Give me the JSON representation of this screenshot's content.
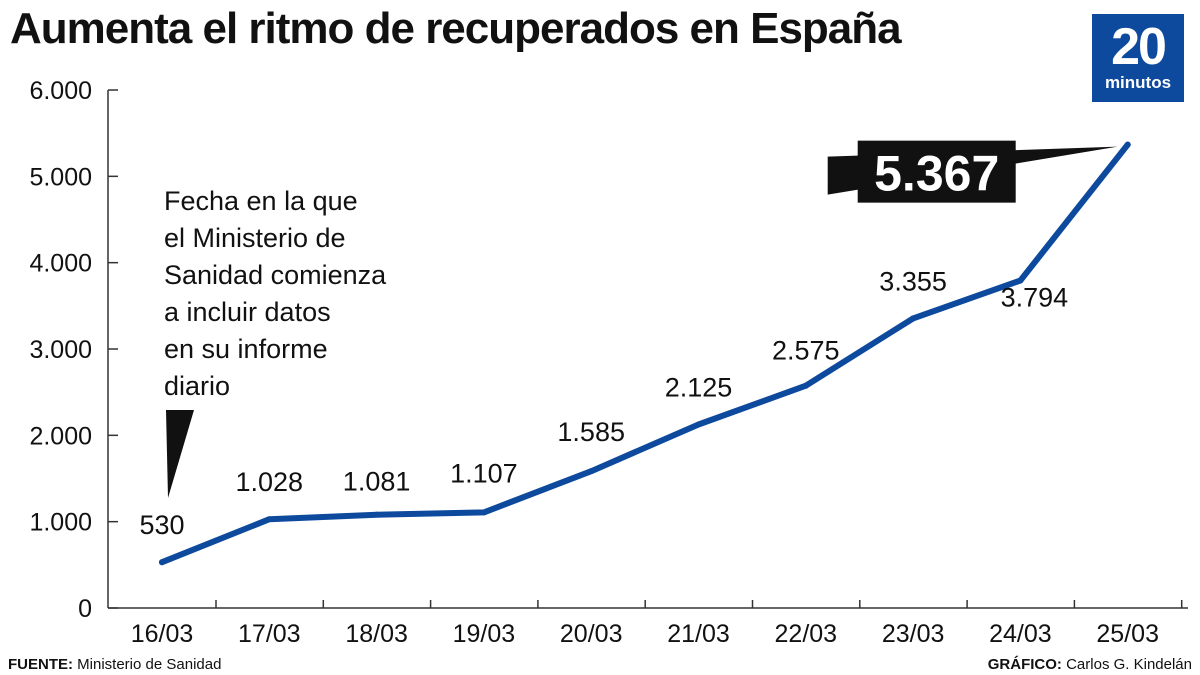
{
  "header": {
    "title": "Aumenta el ritmo de recuperados en España"
  },
  "logo": {
    "number": "20",
    "text": "minutos",
    "color": "#0d4a9e"
  },
  "chart_data": {
    "type": "line",
    "title": "Aumenta el ritmo de recuperados en España",
    "xlabel": "",
    "ylabel": "",
    "categories": [
      "16/03",
      "17/03",
      "18/03",
      "19/03",
      "20/03",
      "21/03",
      "22/03",
      "23/03",
      "24/03",
      "25/03"
    ],
    "series": [
      {
        "values": [
          530,
          1028,
          1081,
          1107,
          1585,
          2125,
          2575,
          3355,
          3794,
          5367
        ],
        "color": "#0d4a9e"
      }
    ],
    "data_labels": [
      "530",
      "1.028",
      "1.081",
      "1.107",
      "1.585",
      "2.125",
      "2.575",
      "3.355",
      "3.794",
      "5.367"
    ],
    "highlight_label": "5.367",
    "yticks": [
      0,
      1000,
      2000,
      3000,
      4000,
      5000,
      6000
    ],
    "ytick_labels": [
      "0",
      "1.000",
      "2.000",
      "3.000",
      "4.000",
      "5.000",
      "6.000"
    ],
    "ylim": [
      0,
      6000
    ],
    "grid": false,
    "annotation": {
      "lines": [
        "Fecha en la que",
        "el Ministerio de",
        "Sanidad comienza",
        "a incluir datos",
        "en su informe",
        "diario"
      ]
    }
  },
  "footer": {
    "source_label": "FUENTE:",
    "source_value": "Ministerio de Sanidad",
    "credit_label": "GRÁFICO:",
    "credit_value": "Carlos G. Kindelán"
  }
}
